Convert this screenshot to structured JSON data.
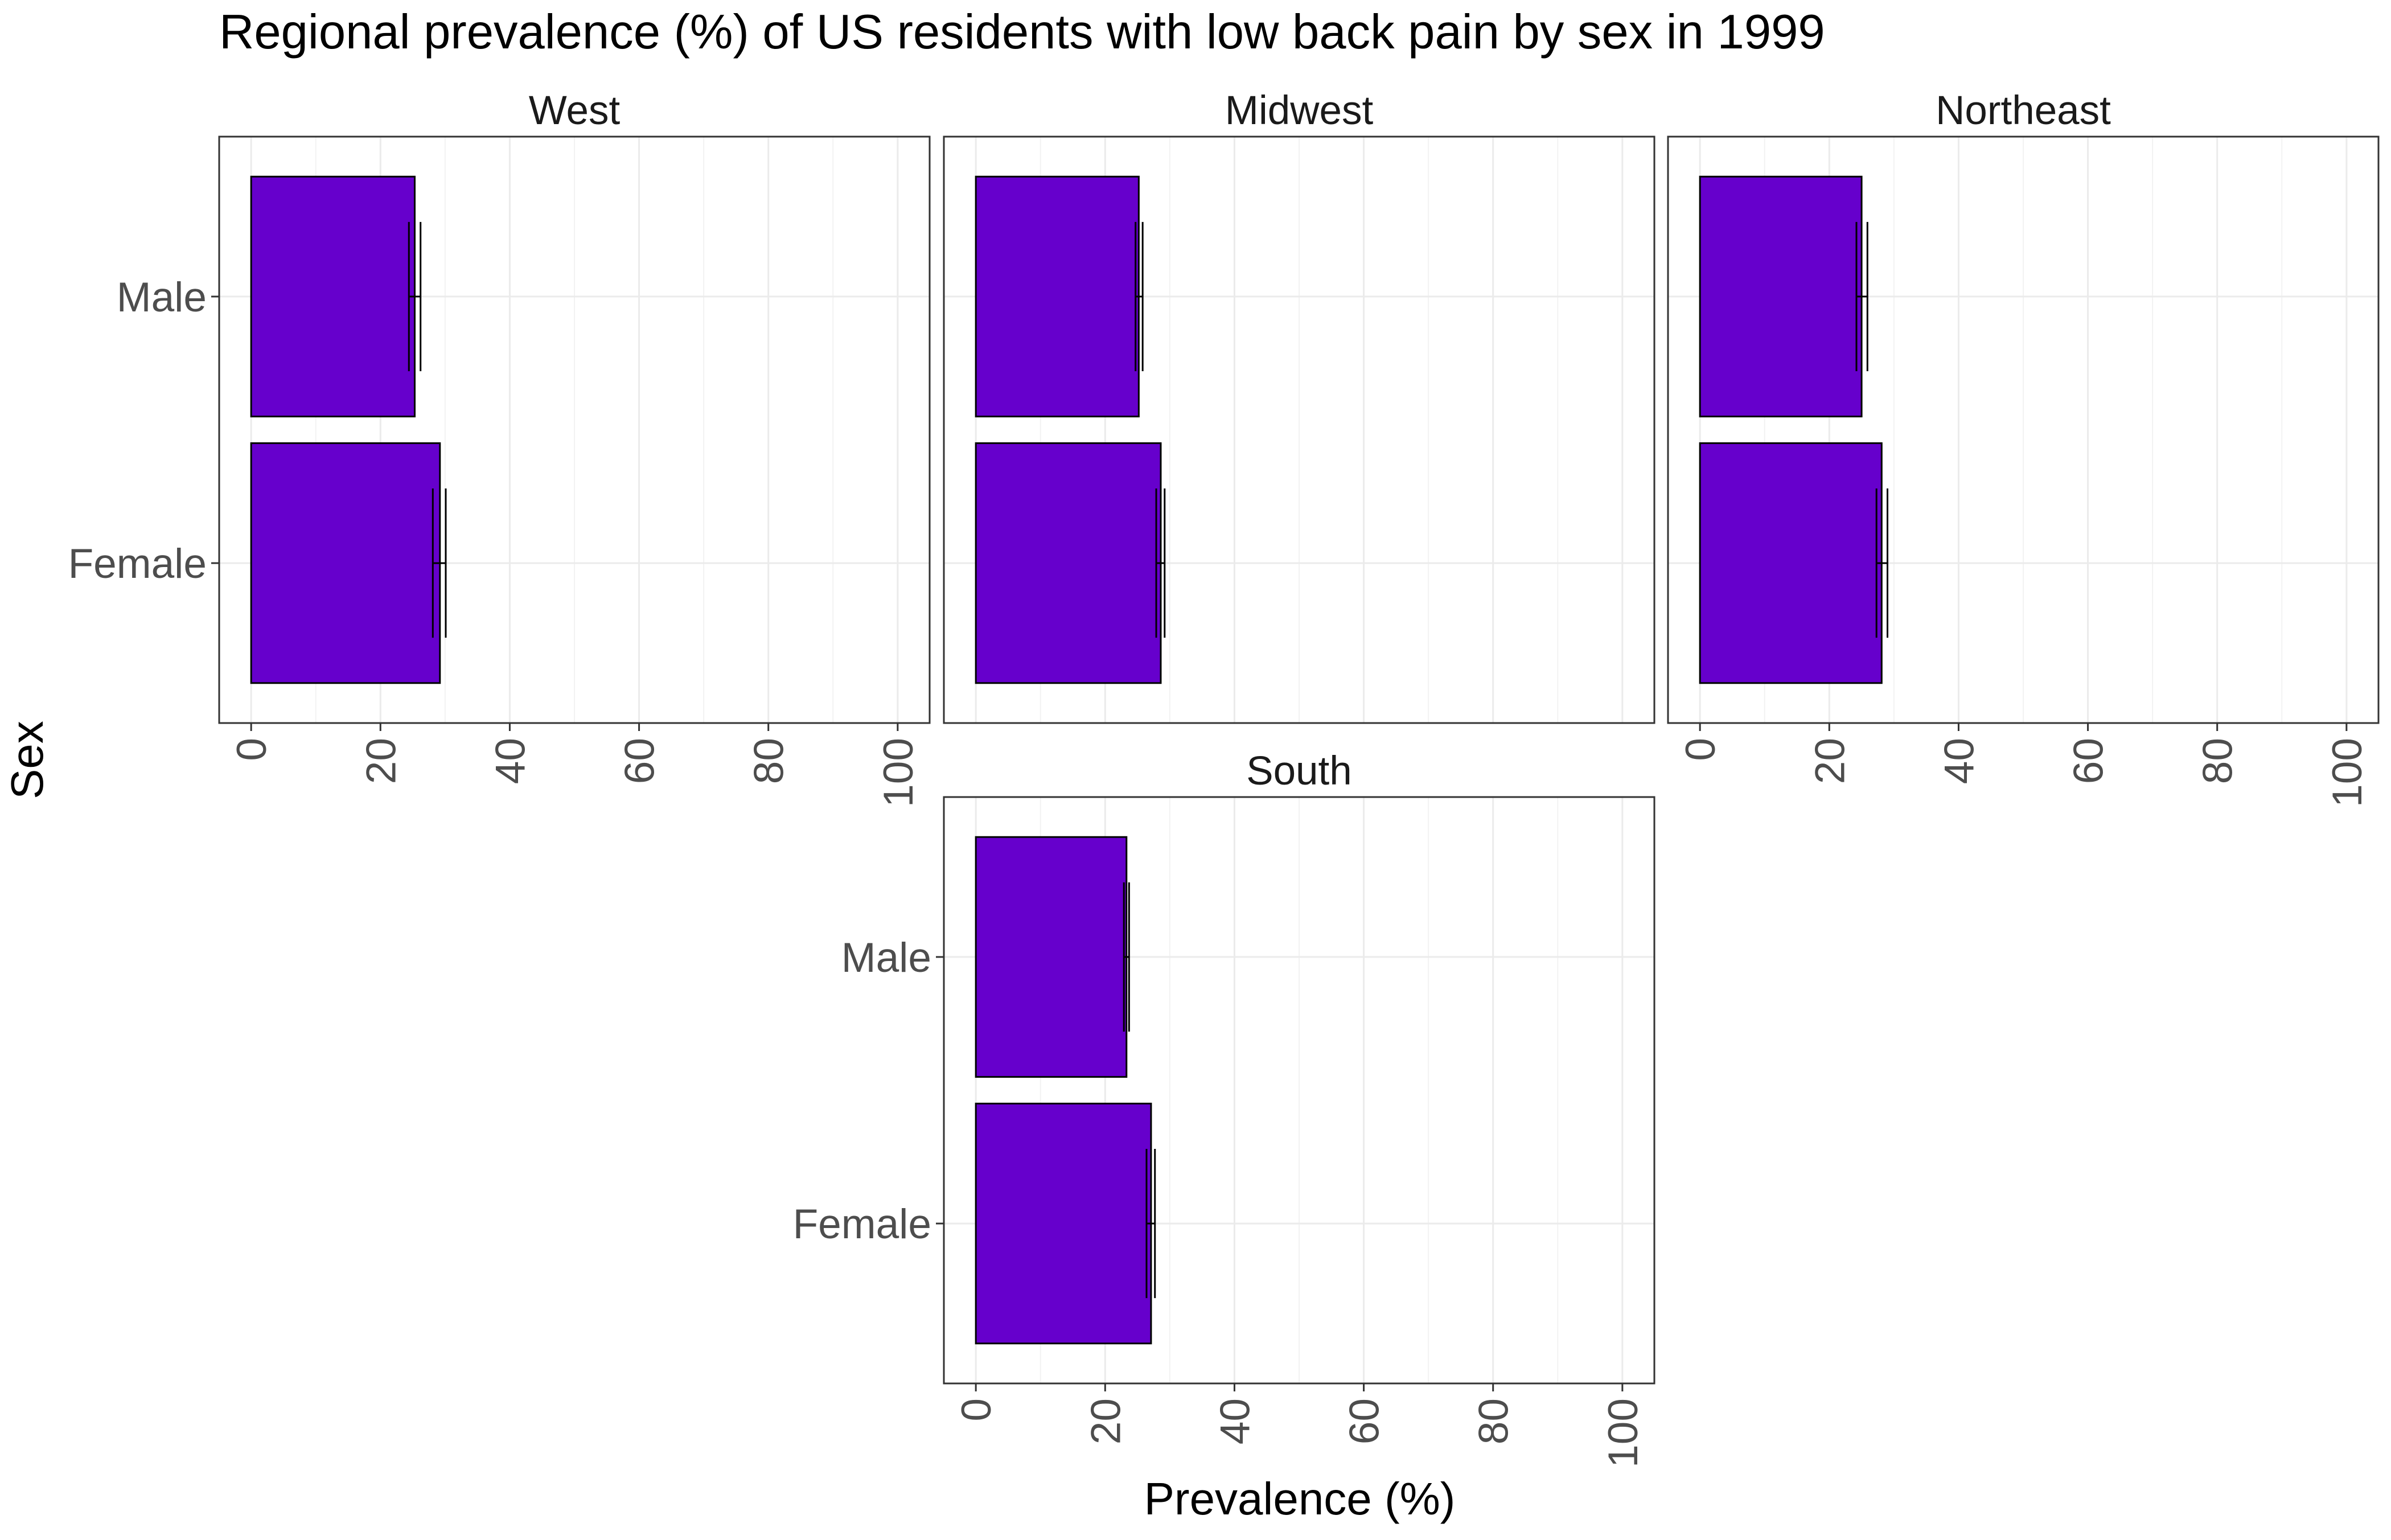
{
  "chart_data": {
    "type": "bar",
    "orientation": "horizontal",
    "title": "Regional prevalence (%) of US residents with low back pain by sex in 1999",
    "xlabel": "Prevalence (%)",
    "ylabel": "Sex",
    "categories": [
      "Female",
      "Male"
    ],
    "xlim": [
      0,
      100
    ],
    "x_ticks": [
      "0",
      "20",
      "40",
      "60",
      "80",
      "100"
    ],
    "grid": true,
    "bar_color": "#6600cc",
    "facets": [
      {
        "name": "West",
        "values": [
          29.2,
          25.3
        ],
        "error": [
          [
            28.1,
            30.1
          ],
          [
            24.4,
            26.2
          ]
        ]
      },
      {
        "name": "Midwest",
        "values": [
          28.6,
          25.2
        ],
        "error": [
          [
            27.9,
            29.2
          ],
          [
            24.7,
            25.8
          ]
        ]
      },
      {
        "name": "Northeast",
        "values": [
          28.1,
          25.0
        ],
        "error": [
          [
            27.3,
            29.0
          ],
          [
            24.2,
            25.9
          ]
        ]
      },
      {
        "name": "South",
        "values": [
          27.1,
          23.3
        ],
        "error": [
          [
            26.4,
            27.7
          ],
          [
            22.9,
            23.7
          ]
        ]
      }
    ]
  }
}
